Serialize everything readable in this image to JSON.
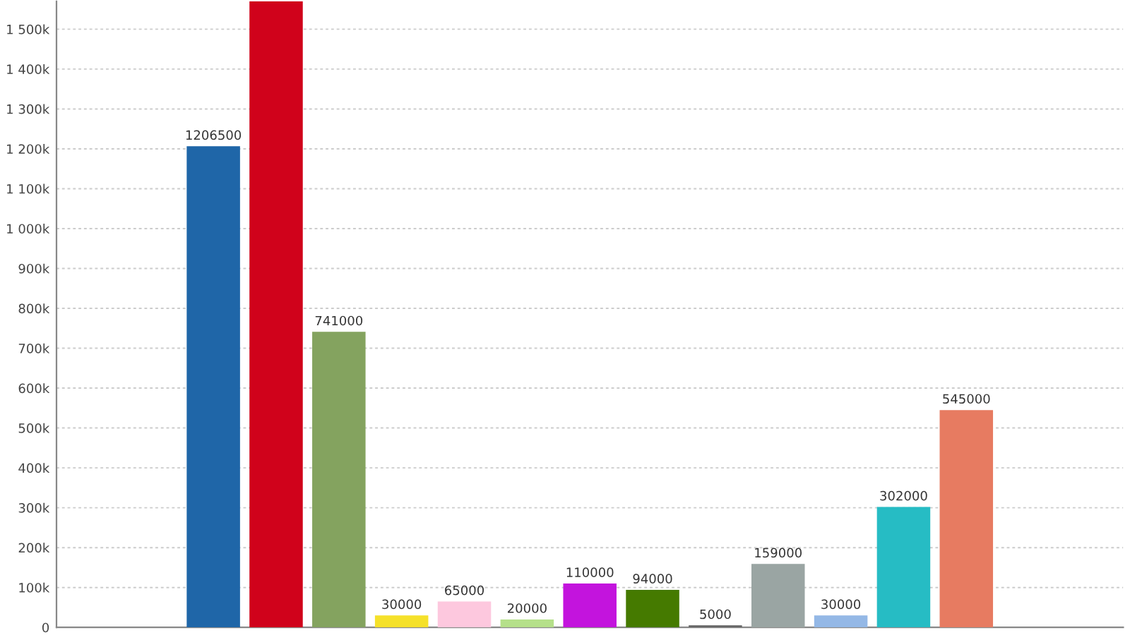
{
  "chart_data": {
    "type": "bar",
    "categories": [
      null,
      null,
      null,
      null,
      null,
      null,
      null,
      null,
      null,
      null,
      null,
      null,
      null,
      null,
      null,
      null,
      null
    ],
    "values": [
      null,
      null,
      1206500,
      1570000,
      741000,
      30000,
      65000,
      20000,
      110000,
      94000,
      5000,
      159000,
      30000,
      302000,
      545000,
      null,
      null
    ],
    "colors": [
      "#1f66a8",
      "#1f66a8",
      "#1f66a8",
      "#d0021b",
      "#84a35f",
      "#f5e12a",
      "#fdc8de",
      "#b5e08a",
      "#c314dd",
      "#457a00",
      "#666666",
      "#9aa5a3",
      "#94b8e6",
      "#26bcc4",
      "#e77b61",
      "#e77b61",
      "#e77b61"
    ],
    "value_labels": [
      null,
      null,
      "1206500",
      null,
      "741000",
      "30000",
      "65000",
      "20000",
      "110000",
      "94000",
      "5000",
      "159000",
      "30000",
      "302000",
      "545000",
      null,
      null
    ],
    "ylim": [
      0,
      1570000
    ],
    "yticks": [
      0,
      {
        "value": 100000,
        "label": "100k"
      },
      {
        "value": 200000,
        "label": "200k"
      },
      {
        "value": 300000,
        "label": "300k"
      },
      {
        "value": 400000,
        "label": "400k"
      },
      {
        "value": 500000,
        "label": "500k"
      },
      {
        "value": 600000,
        "label": "600k"
      },
      {
        "value": 700000,
        "label": "700k"
      },
      {
        "value": 800000,
        "label": "800k"
      },
      {
        "value": 900000,
        "label": "900k"
      },
      {
        "value": 1000000,
        "label": "1 000k"
      },
      {
        "value": 1100000,
        "label": "1 100k"
      },
      {
        "value": 1200000,
        "label": "1 200k"
      },
      {
        "value": 1300000,
        "label": "1 300k"
      },
      {
        "value": 1400000,
        "label": "1 400k"
      },
      {
        "value": 1500000,
        "label": "1 500k"
      }
    ],
    "grid": "y"
  }
}
